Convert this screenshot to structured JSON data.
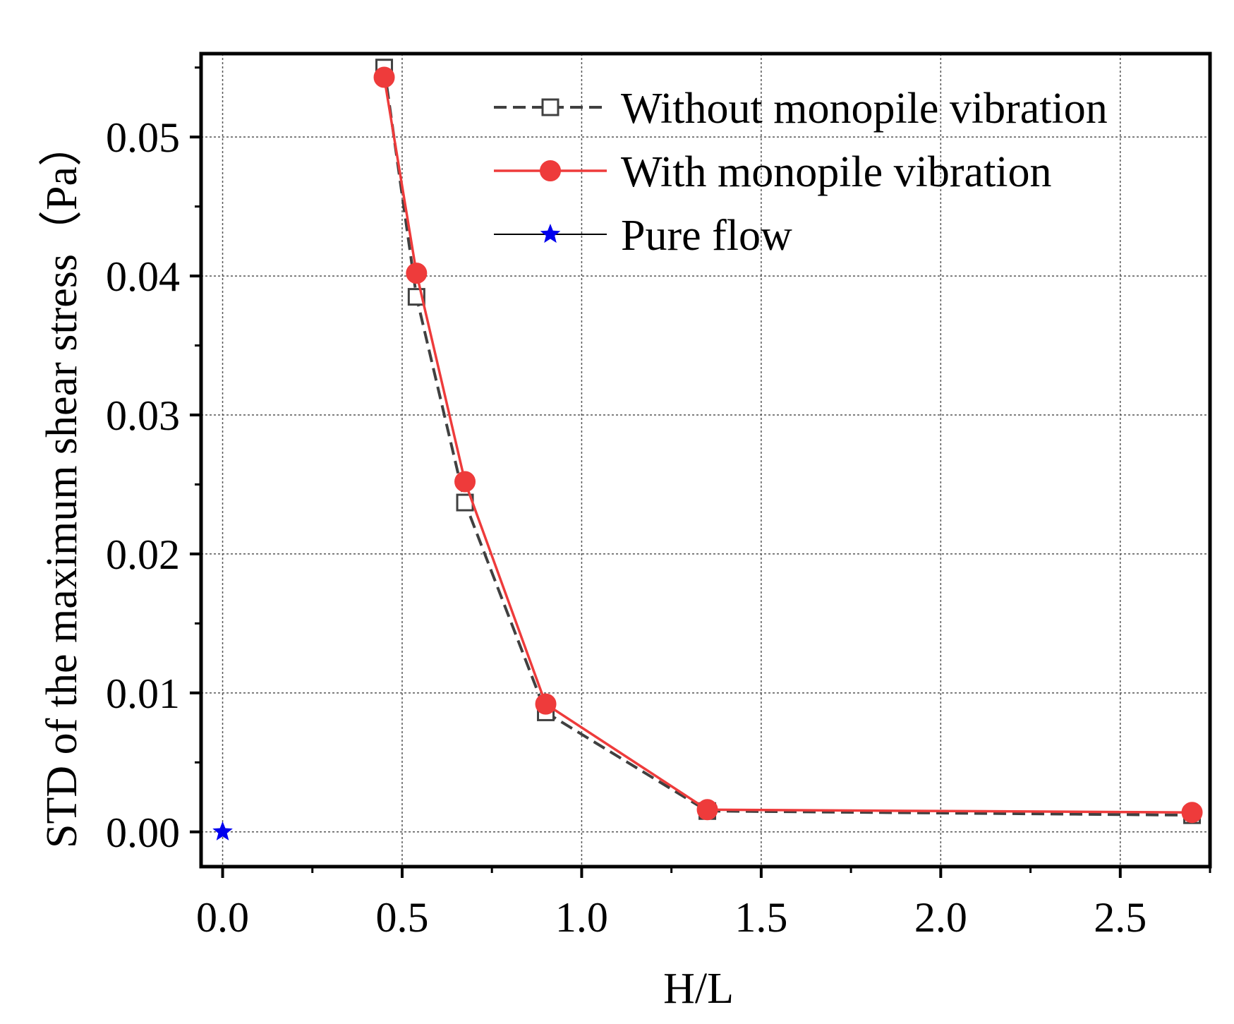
{
  "chart_data": {
    "type": "line",
    "xlabel": "H/L",
    "ylabel": "STD of the maximum shear stress（Pa）",
    "xlim": [
      -0.06,
      2.75
    ],
    "ylim": [
      -0.0025,
      0.056
    ],
    "xticks": [
      0.0,
      0.5,
      1.0,
      1.5,
      2.0,
      2.5
    ],
    "xtick_labels": [
      "0.0",
      "0.5",
      "1.0",
      "1.5",
      "2.0",
      "2.5"
    ],
    "yticks": [
      0.0,
      0.01,
      0.02,
      0.03,
      0.04,
      0.05
    ],
    "ytick_labels": [
      "0.00",
      "0.01",
      "0.02",
      "0.03",
      "0.04",
      "0.05"
    ],
    "grid": true,
    "legend_position": "top-right",
    "series": [
      {
        "name": "Without monopile vibration",
        "color": "#404040",
        "line_style": "dashed",
        "marker": "open-square",
        "x": [
          0.45,
          0.54,
          0.675,
          0.9,
          1.35,
          2.7
        ],
        "y": [
          0.055,
          0.0385,
          0.0237,
          0.0086,
          0.0015,
          0.0012
        ]
      },
      {
        "name": "With monopile vibration",
        "color": "#ee3b3b",
        "line_style": "solid",
        "marker": "filled-circle",
        "x": [
          0.45,
          0.54,
          0.675,
          0.9,
          1.35,
          2.7
        ],
        "y": [
          0.0543,
          0.0402,
          0.0252,
          0.0092,
          0.0016,
          0.0014
        ]
      },
      {
        "name": "Pure flow",
        "color": "#0000ee",
        "line_style": "solid",
        "marker": "star",
        "x": [
          0.0
        ],
        "y": [
          0.0
        ]
      }
    ]
  }
}
